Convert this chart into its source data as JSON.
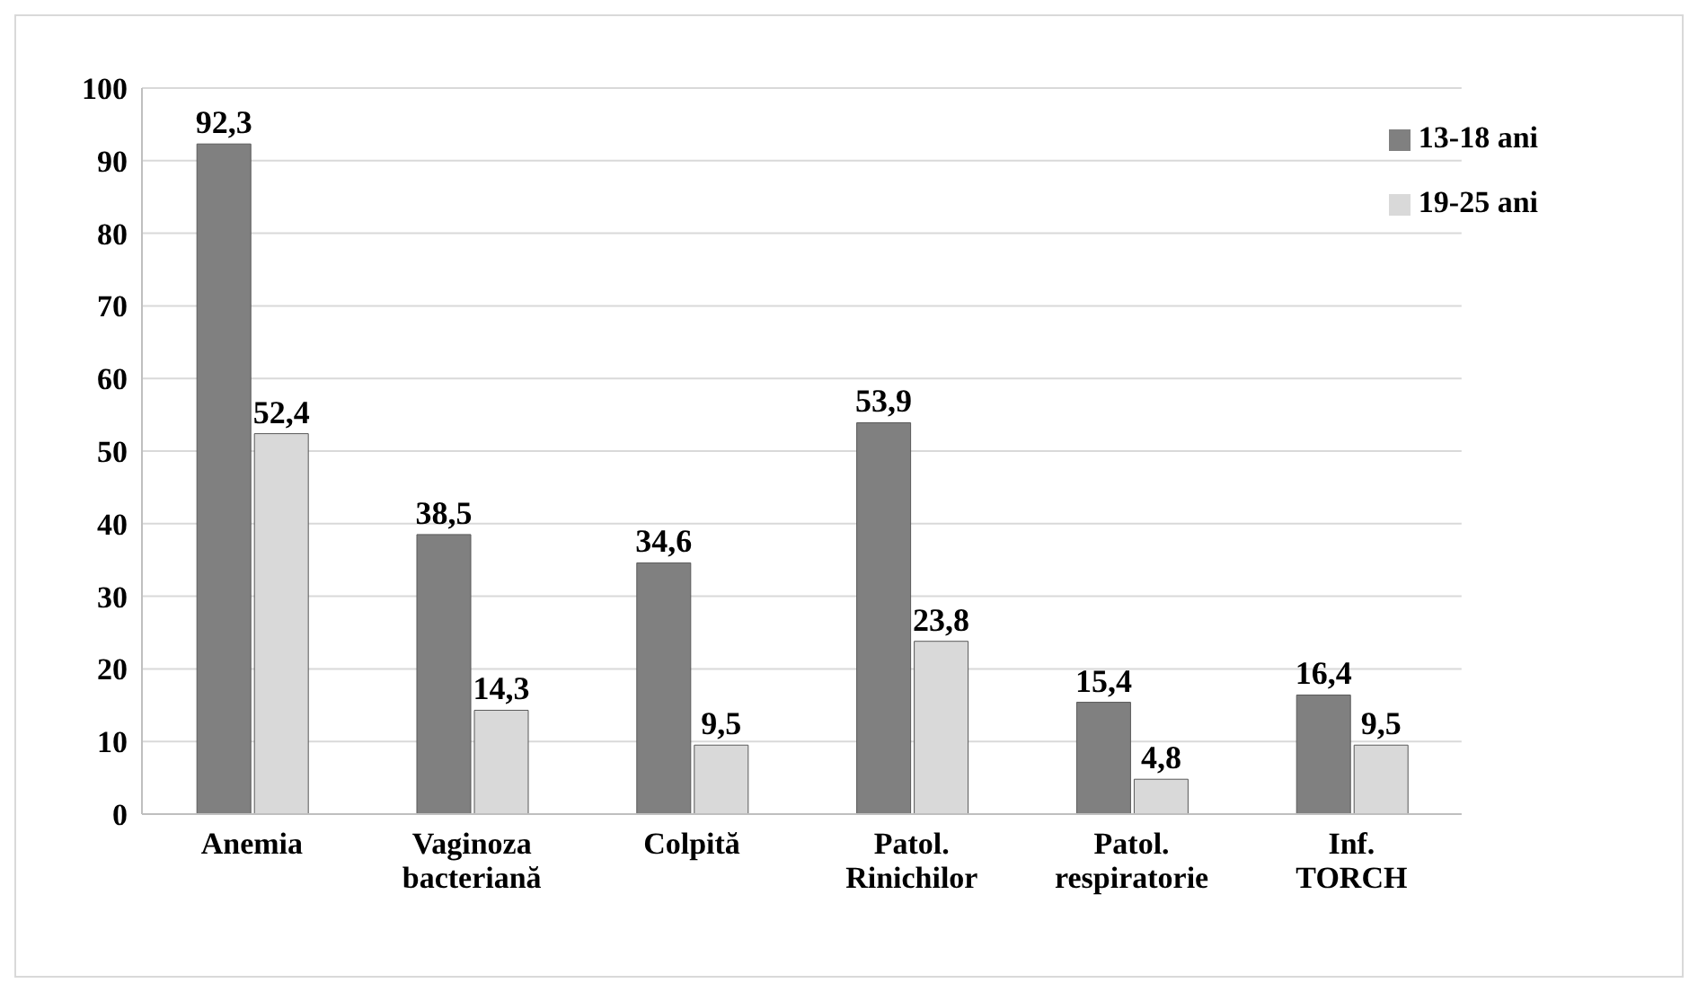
{
  "chart_data": {
    "type": "bar",
    "categories": [
      "Anemia",
      "Vaginoza bacteriană",
      "Colpită",
      "Patol. Rinichilor",
      "Patol. respiratorie",
      "Inf. TORCH"
    ],
    "series": [
      {
        "name": "13-18 ani",
        "color": "#808080",
        "values": [
          92.3,
          38.5,
          34.6,
          53.9,
          15.4,
          16.4
        ],
        "value_labels": [
          "92,3",
          "38,5",
          "34,6",
          "53,9",
          "15,4",
          "16,4"
        ]
      },
      {
        "name": "19-25 ani",
        "color": "#d9d9d9",
        "values": [
          52.4,
          14.3,
          9.5,
          23.8,
          4.8,
          9.5
        ],
        "value_labels": [
          "52,4",
          "14,3",
          "9,5",
          "23,8",
          "4,8",
          "9,5"
        ]
      }
    ],
    "ylim": [
      0,
      100
    ],
    "yticks": [
      0,
      10,
      20,
      30,
      40,
      50,
      60,
      70,
      80,
      90,
      100
    ],
    "grid": "y",
    "legend": "top right"
  }
}
